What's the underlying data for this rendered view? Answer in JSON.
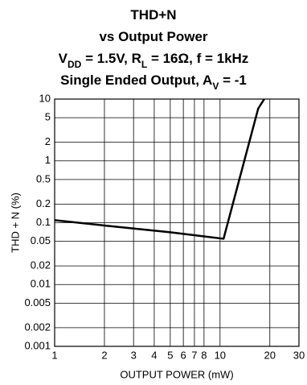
{
  "chart_data": {
    "type": "line",
    "title": [
      [
        "THD+N"
      ],
      [
        "vs Output Power"
      ],
      [
        "V",
        {
          "sub": "DD"
        },
        " = 1.5V, R",
        {
          "sub": "L"
        },
        " = 16Ω, f = 1kHz"
      ],
      [
        "Single Ended Output, A",
        {
          "sub": "V"
        },
        " = -1"
      ]
    ],
    "xlabel": "OUTPUT POWER (mW)",
    "ylabel": "THD + N (%)",
    "xscale": "log",
    "yscale": "log",
    "grid": true,
    "xlim": [
      1,
      30
    ],
    "xticks": [
      1,
      2,
      3,
      4,
      5,
      6,
      7,
      8,
      10,
      20,
      30
    ],
    "ylim": [
      0.001,
      10
    ],
    "yticks": [
      10,
      5,
      2,
      1,
      0.5,
      0.2,
      0.1,
      0.05,
      0.02,
      0.01,
      0.005,
      0.002,
      0.001
    ],
    "series": [
      {
        "color": "#000000",
        "x": [
          1,
          2,
          5,
          10.5,
          17,
          18.5
        ],
        "values": [
          0.11,
          0.09,
          0.07,
          0.055,
          7,
          10
        ]
      }
    ]
  }
}
